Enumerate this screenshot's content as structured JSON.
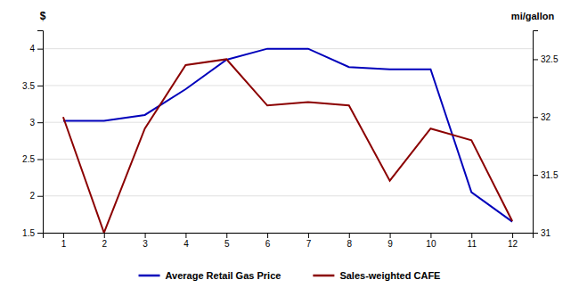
{
  "chart_data": {
    "type": "line",
    "ylabel": "$",
    "y2label": "mi/gallon",
    "x": [
      1,
      2,
      3,
      4,
      5,
      6,
      7,
      8,
      9,
      10,
      11,
      12
    ],
    "xlim": [
      0.5,
      12.5
    ],
    "xticks": [
      1,
      2,
      3,
      4,
      5,
      6,
      7,
      8,
      9,
      10,
      11,
      12
    ],
    "ylim": [
      1.5,
      4.25
    ],
    "yticks": [
      1.5,
      2,
      2.5,
      3,
      3.5,
      4
    ],
    "y2lim": [
      31.0,
      32.75
    ],
    "y2ticks": [
      31,
      31.5,
      32,
      32.5
    ],
    "grid": true,
    "legend": "bottom",
    "series": [
      {
        "name": "Average Retail Gas Price",
        "color": "#0000BB",
        "values": [
          3.02,
          3.02,
          3.1,
          3.45,
          3.85,
          4.0,
          4.0,
          3.75,
          3.72,
          3.72,
          2.05,
          1.65
        ]
      },
      {
        "name": "Sales-weighted CAFE",
        "color": "#8B0000",
        "axis": "y2",
        "values": [
          32.0,
          31.0,
          31.9,
          32.45,
          32.5,
          32.1,
          32.13,
          32.1,
          31.45,
          31.9,
          31.8,
          31.1
        ]
      }
    ]
  }
}
